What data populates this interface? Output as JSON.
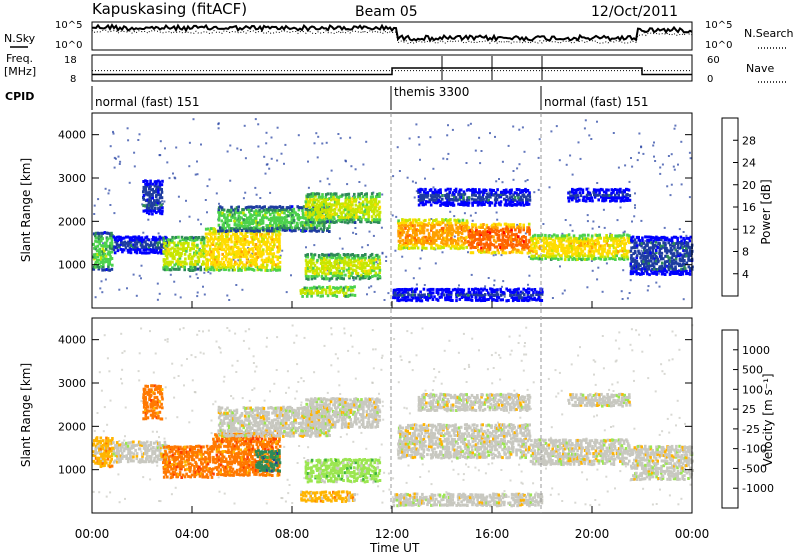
{
  "header": {
    "station": "Kapuskasing (fitACF)",
    "beam": "Beam 05",
    "date": "12/Oct/2011"
  },
  "top_panel": {
    "nsky_label": "N.Sky",
    "nsearch_label": "N.Search",
    "nsky_ticks": [
      "10^5",
      "10^0"
    ],
    "nsearch_ticks": [
      "10^5",
      "10^0"
    ],
    "freq_label_1": "Freq.",
    "freq_label_2": "[MHz]",
    "freq_ticks": [
      "18",
      "8"
    ],
    "nave_label": "Nave",
    "nave_ticks": [
      "60",
      "0"
    ],
    "cpid_label": "CPID",
    "cpid_segments": [
      {
        "label": "normal (fast) 151",
        "start": 0,
        "end": 12
      },
      {
        "label": "themis 3300",
        "start": 12,
        "end": 18
      },
      {
        "label": "normal (fast) 151",
        "start": 18,
        "end": 24
      }
    ]
  },
  "time_axis": {
    "label": "Time UT",
    "ticks": [
      "00:00",
      "04:00",
      "08:00",
      "12:00",
      "16:00",
      "20:00",
      "00:00"
    ]
  },
  "power_colorbar": {
    "label": "Power [dB]",
    "ticks": [
      "28",
      "24",
      "20",
      "16",
      "12",
      "8",
      "4"
    ],
    "colors": [
      "#0000ff",
      "#1e3ca0",
      "#2e8b57",
      "#4cd24c",
      "#c8e600",
      "#ffdc00",
      "#ffa000",
      "#ff6400",
      "#ff0000"
    ]
  },
  "velocity_colorbar": {
    "label": "Velocity [m s⁻¹]",
    "ticks": [
      "1000",
      "500",
      "100",
      "25",
      "-25",
      "-100",
      "-500",
      "-1000"
    ],
    "colors": [
      "#1e3ca0",
      "#2e8b57",
      "#3cb43c",
      "#9be650",
      "#c8c8c0",
      "#ffb400",
      "#ff7800",
      "#ff3c00",
      "#e60000"
    ]
  },
  "chart_data": [
    {
      "type": "line",
      "name": "noise-frequency-nave",
      "x_range": [
        0,
        24
      ],
      "freq_mhz": [
        {
          "x": 0,
          "y": 10.5
        },
        {
          "x": 12,
          "y": 10.5
        },
        {
          "x": 12,
          "y": 13
        },
        {
          "x": 22,
          "y": 13
        },
        {
          "x": 22,
          "y": 10.5
        },
        {
          "x": 24,
          "y": 10.5
        }
      ],
      "nave": [
        {
          "x": 0,
          "y": 24
        },
        {
          "x": 24,
          "y": 24
        }
      ]
    },
    {
      "type": "heatmap",
      "name": "power",
      "ylabel": "Slant Range [km]",
      "xlabel": "Time UT",
      "xlim": [
        0,
        24
      ],
      "ylim": [
        0,
        4500
      ],
      "yticks": [
        1000,
        2000,
        3000,
        4000
      ],
      "regions": [
        {
          "t0": 0.0,
          "t1": 0.8,
          "r0": 900,
          "r1": 1800,
          "level": 3
        },
        {
          "t0": 0.8,
          "t1": 3.0,
          "r0": 1300,
          "r1": 1700,
          "level": 1
        },
        {
          "t0": 2.0,
          "t1": 2.8,
          "r0": 2200,
          "r1": 3000,
          "level": 1
        },
        {
          "t0": 2.8,
          "t1": 4.5,
          "r0": 900,
          "r1": 1700,
          "level": 4
        },
        {
          "t0": 4.5,
          "t1": 7.5,
          "r0": 900,
          "r1": 1900,
          "level": 5
        },
        {
          "t0": 5.0,
          "t1": 9.5,
          "r0": 1800,
          "r1": 2400,
          "level": 3
        },
        {
          "t0": 8.5,
          "t1": 11.5,
          "r0": 2000,
          "r1": 2700,
          "level": 4
        },
        {
          "t0": 8.5,
          "t1": 11.5,
          "r0": 700,
          "r1": 1300,
          "level": 4
        },
        {
          "t0": 8.3,
          "t1": 10.5,
          "r0": 300,
          "r1": 550,
          "level": 5
        },
        {
          "t0": 12.2,
          "t1": 15.0,
          "r0": 1400,
          "r1": 2100,
          "level": 6
        },
        {
          "t0": 15.0,
          "t1": 17.5,
          "r0": 1300,
          "r1": 2000,
          "level": 7
        },
        {
          "t0": 17.5,
          "t1": 21.5,
          "r0": 1150,
          "r1": 1750,
          "level": 5
        },
        {
          "t0": 13.0,
          "t1": 17.5,
          "r0": 2400,
          "r1": 2800,
          "level": 1
        },
        {
          "t0": 19.0,
          "t1": 21.5,
          "r0": 2500,
          "r1": 2800,
          "level": 1
        },
        {
          "t0": 21.5,
          "t1": 24.0,
          "r0": 800,
          "r1": 1700,
          "level": 1
        },
        {
          "t0": 12.0,
          "t1": 18.0,
          "r0": 200,
          "r1": 500,
          "level": 1
        }
      ]
    },
    {
      "type": "heatmap",
      "name": "velocity",
      "ylabel": "Slant Range [km]",
      "xlabel": "Time UT",
      "xlim": [
        0,
        24
      ],
      "ylim": [
        0,
        4500
      ],
      "yticks": [
        1000,
        2000,
        3000,
        4000
      ],
      "regions": [
        {
          "t0": 0.0,
          "t1": 0.8,
          "r0": 1100,
          "r1": 1800,
          "level": 5
        },
        {
          "t0": 0.8,
          "t1": 3.0,
          "r0": 1200,
          "r1": 1700,
          "level": 4
        },
        {
          "t0": 2.0,
          "t1": 2.8,
          "r0": 2200,
          "r1": 3000,
          "level": 6
        },
        {
          "t0": 2.8,
          "t1": 4.8,
          "r0": 850,
          "r1": 1600,
          "level": 6
        },
        {
          "t0": 4.8,
          "t1": 7.5,
          "r0": 900,
          "r1": 1900,
          "level": 6
        },
        {
          "t0": 6.5,
          "t1": 7.5,
          "r0": 1000,
          "r1": 1500,
          "level": 1
        },
        {
          "t0": 5.0,
          "t1": 9.5,
          "r0": 1800,
          "r1": 2500,
          "level": 4
        },
        {
          "t0": 8.5,
          "t1": 11.5,
          "r0": 2000,
          "r1": 2700,
          "level": 4
        },
        {
          "t0": 8.5,
          "t1": 11.5,
          "r0": 750,
          "r1": 1300,
          "level": 3
        },
        {
          "t0": 8.3,
          "t1": 10.5,
          "r0": 300,
          "r1": 550,
          "level": 5
        },
        {
          "t0": 12.2,
          "t1": 17.5,
          "r0": 1300,
          "r1": 2100,
          "level": 4
        },
        {
          "t0": 17.5,
          "t1": 21.5,
          "r0": 1150,
          "r1": 1750,
          "level": 4
        },
        {
          "t0": 13.0,
          "t1": 17.5,
          "r0": 2400,
          "r1": 2800,
          "level": 4
        },
        {
          "t0": 19.0,
          "t1": 21.5,
          "r0": 2500,
          "r1": 2800,
          "level": 4
        },
        {
          "t0": 21.5,
          "t1": 24.0,
          "r0": 800,
          "r1": 1600,
          "level": 4
        },
        {
          "t0": 12.0,
          "t1": 18.0,
          "r0": 200,
          "r1": 500,
          "level": 4
        }
      ]
    }
  ]
}
